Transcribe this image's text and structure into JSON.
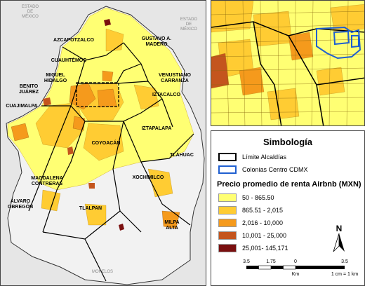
{
  "main_map": {
    "states": {
      "edomex_left": [
        "ESTADO",
        "DE",
        "MÉXICO"
      ],
      "edomex_right": [
        "ESTADO",
        "DE",
        "MÉXICO"
      ],
      "morelos": "MORELOS"
    },
    "alcaldias": {
      "azcapotzalco": "AZCAPOTZALCO",
      "gam": [
        "GUSTAVO A.",
        "MADERO"
      ],
      "cuauhtemoc": "CUAUHTÉMOC",
      "miguel_hidalgo": [
        "MIGUEL",
        "HIDALGO"
      ],
      "venustiano": [
        "VENUSTIANO",
        "CARRANZA"
      ],
      "benito_juarez": [
        "BENITO",
        "JUÁREZ"
      ],
      "iztacalco": "IZTACALCO",
      "cuajimalpa": "CUAJIMALPA",
      "iztapalapa": "IZTAPALAPA",
      "coyoacan": "COYOACÁN",
      "tlahuac": "TLÁHUAC",
      "magdalena": [
        "MAGDALENA",
        "CONTRERAS"
      ],
      "xochimilco": "XOCHIMILCO",
      "alvaro": [
        "ÁLVARO",
        "OBREGÓN"
      ],
      "tlalpan": "TLALPAN",
      "milpa_alta": [
        "MILPA",
        "ALTA"
      ]
    }
  },
  "legend": {
    "title": "Simbología",
    "boundary_items": [
      {
        "label": "Límite Alcaldías",
        "color": "#000000"
      },
      {
        "label": "Colonias Centro CDMX",
        "color": "#1f5fd0"
      }
    ],
    "price_title": "Precio promedio de renta Airbnb (MXN)",
    "classes": [
      {
        "label": "50 - 865.50",
        "color": "#ffff73"
      },
      {
        "label": "865.51 - 2,015",
        "color": "#ffcc33"
      },
      {
        "label": "2,016 - 10,000",
        "color": "#f59a1c"
      },
      {
        "label": "10,001 - 25,000",
        "color": "#c4551e"
      },
      {
        "label": "25,001- 145,171",
        "color": "#7a0f0f"
      }
    ]
  },
  "north_arrow": "N",
  "scale_bar": {
    "ticks": [
      "3.5",
      "1.75",
      "0",
      "3.5"
    ],
    "unit": "Km",
    "ratio": "1 cm = 1 km"
  }
}
